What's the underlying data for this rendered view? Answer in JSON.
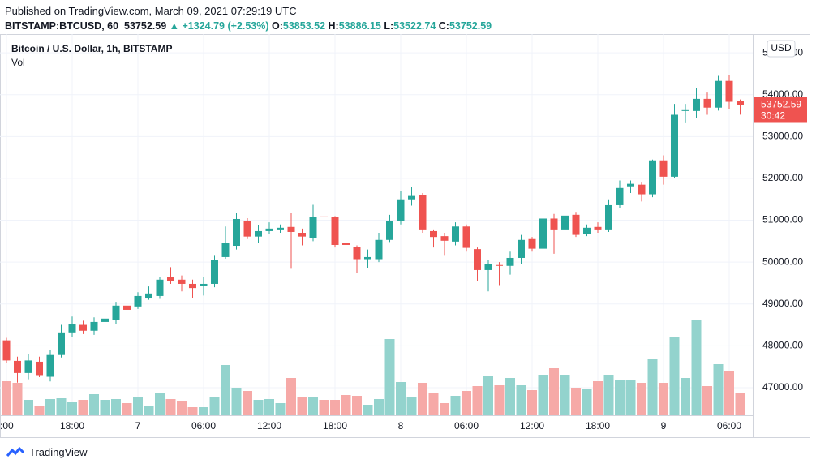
{
  "header": {
    "published": "Published on TradingView.com, March 09, 2021 07:29:19 UTC",
    "symbol": "BITSTAMP:BTCUSD, 60",
    "last": "53752.59",
    "change": "▲ +1324.79 (+2.53%)",
    "ohlc": [
      {
        "label": "O:",
        "value": "53853.52"
      },
      {
        "label": "H:",
        "value": "53886.15"
      },
      {
        "label": "L:",
        "value": "53522.74"
      },
      {
        "label": "C:",
        "value": "53752.59"
      }
    ]
  },
  "footer": {
    "brand": "TradingView"
  },
  "chart_data": {
    "type": "candlestick",
    "title": "Bitcoin / U.S. Dollar, 1h, BITSTAMP",
    "volume_label": "Vol",
    "y_unit": "USD",
    "price_tag": "53752.59",
    "countdown": "30:42",
    "up_color": "#26a69a",
    "down_color": "#ef5350",
    "up_volume_color": "#93d3cd",
    "down_volume_color": "#f6a9a7",
    "grid": true,
    "categories": [
      ":00",
      null,
      null,
      null,
      null,
      null,
      "18:00",
      null,
      null,
      null,
      null,
      null,
      "7",
      null,
      null,
      null,
      null,
      null,
      "06:00",
      null,
      null,
      null,
      null,
      null,
      "12:00",
      null,
      null,
      null,
      null,
      null,
      "18:00",
      null,
      null,
      null,
      null,
      null,
      "8",
      null,
      null,
      null,
      null,
      null,
      "06:00",
      null,
      null,
      null,
      null,
      null,
      "12:00",
      null,
      null,
      null,
      null,
      null,
      "18:00",
      null,
      null,
      null,
      null,
      null,
      "9",
      null,
      null,
      null,
      null,
      null,
      "06:00",
      null
    ],
    "open": [
      48130,
      47640,
      47350,
      47620,
      47260,
      47780,
      48320,
      48500,
      48360,
      48570,
      48610,
      48960,
      48940,
      49130,
      49190,
      49640,
      49580,
      49480,
      49440,
      49480,
      50120,
      50390,
      50990,
      50610,
      50740,
      50780,
      50840,
      50700,
      50570,
      51090,
      51070,
      50450,
      50360,
      50070,
      50070,
      50530,
      50990,
      51500,
      51600,
      50740,
      50620,
      50490,
      50850,
      50310,
      49810,
      49930,
      49910,
      50100,
      50550,
      50320,
      51040,
      50780,
      51130,
      50670,
      50840,
      50780,
      51360,
      51810,
      51850,
      51620,
      52430,
      52040,
      53610,
      53610,
      53900,
      53690,
      54330,
      53853.52
    ],
    "high": [
      48190,
      47740,
      47800,
      47740,
      47900,
      48500,
      48700,
      48600,
      48680,
      48850,
      49050,
      49080,
      49280,
      49420,
      49650,
      49880,
      49680,
      49580,
      49650,
      50150,
      50850,
      51170,
      51050,
      50880,
      50950,
      50900,
      51180,
      50800,
      51370,
      51170,
      51100,
      50600,
      50400,
      50300,
      50700,
      51130,
      51700,
      51800,
      51650,
      50780,
      50700,
      50950,
      50900,
      50350,
      50050,
      50000,
      50250,
      50650,
      50600,
      51160,
      51150,
      51180,
      51200,
      50900,
      50950,
      51500,
      51950,
      51950,
      51900,
      52450,
      52550,
      53780,
      53780,
      54150,
      54050,
      54450,
      54480,
      53886.15
    ],
    "low": [
      47590,
      47120,
      47200,
      47250,
      47150,
      47720,
      48200,
      48280,
      48260,
      48450,
      48530,
      48800,
      48880,
      49100,
      49120,
      49480,
      49300,
      49150,
      49200,
      49400,
      50080,
      50300,
      50550,
      50450,
      50680,
      50700,
      49840,
      50400,
      50500,
      50950,
      50350,
      50300,
      49750,
      49850,
      50000,
      50480,
      50900,
      51350,
      50700,
      50350,
      50150,
      50400,
      50250,
      49550,
      49300,
      49450,
      49700,
      49950,
      50250,
      50200,
      50200,
      50650,
      50600,
      50620,
      50700,
      50720,
      51300,
      51650,
      51450,
      51550,
      51850,
      52000,
      53320,
      53450,
      53520,
      53620,
      53650,
      53522.74
    ],
    "close": [
      47650,
      47350,
      47650,
      47300,
      47780,
      48320,
      48510,
      48360,
      48570,
      48650,
      48960,
      48860,
      49190,
      49250,
      49580,
      49540,
      49480,
      49380,
      49480,
      50060,
      50450,
      51030,
      50610,
      50740,
      50800,
      50820,
      50720,
      50610,
      51070,
      51070,
      50410,
      50410,
      50070,
      50120,
      50530,
      50990,
      51500,
      51580,
      50780,
      50600,
      50510,
      50850,
      50340,
      49810,
      49950,
      49910,
      50100,
      50530,
      50320,
      51040,
      50780,
      51110,
      50650,
      50820,
      50780,
      51360,
      51770,
      51870,
      51620,
      52430,
      52040,
      53520,
      53630,
      53900,
      53690,
      54330,
      53830,
      53752.59
    ],
    "volume": [
      42,
      40,
      19,
      12,
      20,
      21,
      16,
      19,
      26,
      19,
      20,
      15,
      22,
      12,
      28,
      20,
      18,
      10,
      10,
      23,
      62,
      34,
      30,
      19,
      20,
      15,
      46,
      22,
      22,
      19,
      19,
      25,
      24,
      13,
      20,
      94,
      41,
      23,
      40,
      28,
      15,
      24,
      30,
      36,
      49,
      37,
      46,
      37,
      31,
      50,
      58,
      50,
      34,
      32,
      42,
      50,
      43,
      43,
      40,
      70,
      40,
      96,
      46,
      117,
      36,
      63,
      55,
      27
    ],
    "ylim": [
      46340,
      55390
    ],
    "yticks": [
      {
        "value": 47000,
        "label": "47000.00"
      },
      {
        "value": 48000,
        "label": "48000.00"
      },
      {
        "value": 49000,
        "label": "49000.00"
      },
      {
        "value": 50000,
        "label": "50000.00"
      },
      {
        "value": 51000,
        "label": "51000.00"
      },
      {
        "value": 52000,
        "label": "52000.00"
      },
      {
        "value": 53000,
        "label": "53000.00"
      },
      {
        "value": 54000,
        "label": "54000.00"
      },
      {
        "value": 55000,
        "label": "55000.00"
      }
    ]
  }
}
